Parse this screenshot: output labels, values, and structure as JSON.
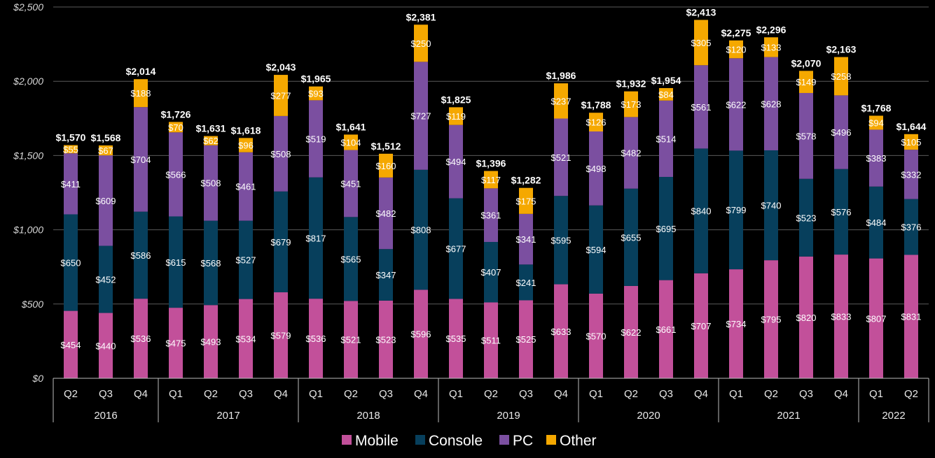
{
  "chart_data": {
    "type": "bar",
    "stacked": true,
    "title": "",
    "xlabel": "",
    "ylabel": "",
    "ylim": [
      0,
      2500
    ],
    "y_ticks": [
      0,
      500,
      1000,
      1500,
      2000,
      2500
    ],
    "y_tick_labels": [
      "$0",
      "$500",
      "$1,000",
      "$1,500",
      "$2,000",
      "$2,500"
    ],
    "grid": "horizontal",
    "legend_position": "bottom",
    "categories": [
      "Q2",
      "Q3",
      "Q4",
      "Q1",
      "Q2",
      "Q3",
      "Q4",
      "Q1",
      "Q2",
      "Q3",
      "Q4",
      "Q1",
      "Q2",
      "Q3",
      "Q4",
      "Q1",
      "Q2",
      "Q3",
      "Q4",
      "Q1",
      "Q2",
      "Q3",
      "Q4",
      "Q1",
      "Q2"
    ],
    "year_groups": [
      {
        "label": "2016",
        "count": 3
      },
      {
        "label": "2017",
        "count": 4
      },
      {
        "label": "2018",
        "count": 4
      },
      {
        "label": "2019",
        "count": 4
      },
      {
        "label": "2020",
        "count": 4
      },
      {
        "label": "2021",
        "count": 4
      },
      {
        "label": "2022",
        "count": 2
      }
    ],
    "series": [
      {
        "name": "Mobile",
        "color": "#c2509a",
        "values": [
          454,
          440,
          536,
          475,
          493,
          534,
          579,
          536,
          521,
          523,
          596,
          535,
          511,
          525,
          633,
          570,
          622,
          661,
          707,
          734,
          795,
          820,
          833,
          807,
          831
        ],
        "labels": [
          "$454",
          "$440",
          "$536",
          "$475",
          "$493",
          "$534",
          "$579",
          "$536",
          "$521",
          "$523",
          "$596",
          "$535",
          "$511",
          "$525",
          "$633",
          "$570",
          "$622",
          "$661",
          "$707",
          "$734",
          "$795",
          "$820",
          "$833",
          "$807",
          "$831"
        ]
      },
      {
        "name": "Console",
        "color": "#073f5c",
        "values": [
          650,
          452,
          586,
          615,
          568,
          527,
          679,
          817,
          565,
          347,
          808,
          677,
          407,
          241,
          595,
          594,
          655,
          695,
          840,
          799,
          740,
          523,
          576,
          484,
          376
        ],
        "labels": [
          "$650",
          "$452",
          "$586",
          "$615",
          "$568",
          "$527",
          "$679",
          "$817",
          "$565",
          "$347",
          "$808",
          "$677",
          "$407",
          "$241",
          "$595",
          "$594",
          "$655",
          "$695",
          "$840",
          "$799",
          "$740",
          "$523",
          "$576",
          "$484",
          "$376"
        ]
      },
      {
        "name": "PC",
        "color": "#7b4fa0",
        "values": [
          411,
          609,
          704,
          566,
          508,
          461,
          508,
          519,
          451,
          482,
          727,
          494,
          361,
          341,
          521,
          498,
          482,
          514,
          561,
          622,
          628,
          578,
          496,
          383,
          332
        ],
        "labels": [
          "$411",
          "$609",
          "$704",
          "$566",
          "$508",
          "$461",
          "$508",
          "$519",
          "$451",
          "$482",
          "$727",
          "$494",
          "$361",
          "$341",
          "$521",
          "$498",
          "$482",
          "$514",
          "$561",
          "$622",
          "$628",
          "$578",
          "$496",
          "$383",
          "$332"
        ]
      },
      {
        "name": "Other",
        "color": "#f5a800",
        "values": [
          55,
          67,
          188,
          70,
          62,
          96,
          277,
          93,
          104,
          160,
          250,
          119,
          117,
          175,
          237,
          126,
          173,
          84,
          305,
          120,
          133,
          149,
          258,
          94,
          105
        ],
        "labels": [
          "$55",
          "$67",
          "$188",
          "$70",
          "$62",
          "$96",
          "$277",
          "$93",
          "$104",
          "$160",
          "$250",
          "$119",
          "$117",
          "$175",
          "$237",
          "$126",
          "$173",
          "$84",
          "$305",
          "$120",
          "$133",
          "$149",
          "$258",
          "$94",
          "$105"
        ]
      }
    ],
    "totals": [
      1570,
      1568,
      2014,
      1726,
      1631,
      1618,
      2043,
      1965,
      1641,
      1512,
      2381,
      1825,
      1396,
      1282,
      1986,
      1788,
      1932,
      1954,
      2413,
      2275,
      2296,
      2070,
      2163,
      1768,
      1644
    ],
    "total_labels": [
      "$1,570",
      "$1,568",
      "$2,014",
      "$1,726",
      "$1,631",
      "$1,618",
      "$2,043",
      "$1,965",
      "$1,641",
      "$1,512",
      "$2,381",
      "$1,825",
      "$1,396",
      "$1,282",
      "$1,986",
      "$1,788",
      "$1,932",
      "$1,954",
      "$2,413",
      "$2,275",
      "$2,296",
      "$2,070",
      "$2,163",
      "$1,768",
      "$1,644"
    ]
  }
}
